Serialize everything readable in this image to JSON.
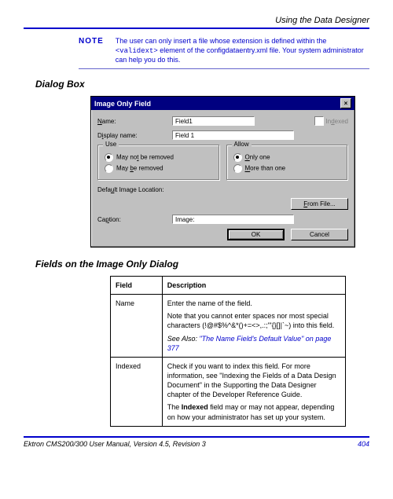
{
  "header": {
    "title": "Using the Data Designer"
  },
  "note": {
    "label": "NOTE",
    "text_before": "The user can only insert a file whose extension is defined within the ",
    "mono": "<validext>",
    "text_after": " element of the configdataentry.xml file. Your system administrator can help you do this."
  },
  "section1": "Dialog Box",
  "dialog": {
    "title": "Image Only Field",
    "name_label": "Name:",
    "name_value": "Field1",
    "indexed_label": "Indexed",
    "display_label": "Display name:",
    "display_value": "Field 1",
    "group_use": {
      "legend": "Use",
      "opt1": "May not be removed",
      "opt2": "May be removed",
      "selected": 1
    },
    "group_allow": {
      "legend": "Allow",
      "opt1": "Only one",
      "opt2": "More than one",
      "selected": 1
    },
    "default_loc_label": "Default Image Location:",
    "btn_from": "From File...",
    "caption_label": "Caption:",
    "caption_value": "Image:",
    "btn_ok": "OK",
    "btn_cancel": "Cancel"
  },
  "section2": "Fields on the Image Only Dialog",
  "table": {
    "col1": "Field",
    "col2": "Description",
    "rows": [
      {
        "f": "Name",
        "p1": "Enter the name of the field.",
        "p2": "Note that you cannot enter spaces nor most special characters (!@#$%^&*()+=<>,.:;'\"{}[]|`~) into this field.",
        "see": "\"The Name Field's Default Value\" on page 377",
        "see_lead": "See Also: "
      },
      {
        "f": "Indexed",
        "p1": "Check if you want to index this field. For more information, see \"Indexing the Fields of a Data Design Document\" in the Supporting the Data Designer chapter of the Developer Reference Guide.",
        "p2_html_pre": "The ",
        "p2_bold": "Indexed",
        "p2_html_post": " field may or may not appear, depending on how your administrator has set up your system."
      }
    ]
  },
  "footer": {
    "left": "Ektron CMS200/300 User Manual, Version 4.5, Revision 3",
    "page": "404"
  }
}
